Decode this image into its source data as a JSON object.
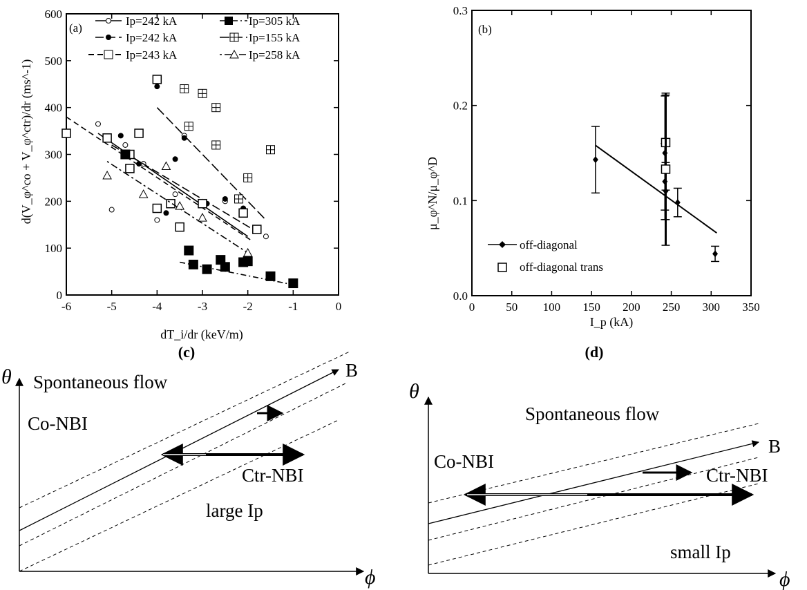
{
  "chart_data": [
    {
      "panel": "(a)",
      "type": "scatter",
      "xlabel": "dT_i/dr (keV/m)",
      "ylabel": "d(V_φ^co + V_φ^ctr)/dr (ms^-1)",
      "xlim": [
        -6,
        0
      ],
      "ylim": [
        0,
        600
      ],
      "xticks": [
        "-6",
        "-5",
        "-4",
        "-3",
        "-2",
        "-1",
        "0"
      ],
      "yticks": [
        "0",
        "100",
        "200",
        "300",
        "400",
        "500",
        "600"
      ],
      "legend_position": "top",
      "series": [
        {
          "name": "Ip=242 kA",
          "marker": "circle-open",
          "line": "solid",
          "points": [
            [
              -5.3,
              365
            ],
            [
              -5.0,
              182
            ],
            [
              -4.7,
              320
            ],
            [
              -4.3,
              280
            ],
            [
              -4.0,
              160
            ],
            [
              -3.6,
              215
            ],
            [
              -3.4,
              340
            ],
            [
              -2.5,
              200
            ],
            [
              -1.6,
              125
            ]
          ],
          "fit": [
            [
              -5.3,
              345
            ],
            [
              -2.0,
              125
            ]
          ]
        },
        {
          "name": "Ip=242 kA",
          "marker": "circle-filled",
          "line": "dash-long",
          "points": [
            [
              -4.8,
              340
            ],
            [
              -4.4,
              280
            ],
            [
              -4.0,
              445
            ],
            [
              -3.6,
              290
            ],
            [
              -3.4,
              335
            ],
            [
              -2.9,
              195
            ],
            [
              -2.5,
              205
            ],
            [
              -2.1,
              185
            ],
            [
              -3.8,
              175
            ]
          ],
          "fit": [
            [
              -5.0,
              320
            ],
            [
              -1.8,
              135
            ]
          ]
        },
        {
          "name": "Ip=243 kA",
          "marker": "square-open",
          "line": "dash",
          "points": [
            [
              -6.0,
              345
            ],
            [
              -5.1,
              335
            ],
            [
              -4.6,
              300
            ],
            [
              -4.6,
              270
            ],
            [
              -4.4,
              345
            ],
            [
              -4.0,
              185
            ],
            [
              -3.7,
              195
            ],
            [
              -3.5,
              145
            ],
            [
              -3.0,
              195
            ],
            [
              -4.0,
              460
            ],
            [
              -2.1,
              175
            ],
            [
              -1.8,
              140
            ]
          ],
          "fit": [
            [
              -6.0,
              380
            ],
            [
              -1.9,
              115
            ]
          ]
        },
        {
          "name": "Ip=305 kA",
          "marker": "square-filled",
          "line": "dash-dot",
          "points": [
            [
              -4.7,
              300
            ],
            [
              -3.3,
              95
            ],
            [
              -3.2,
              65
            ],
            [
              -2.9,
              55
            ],
            [
              -2.6,
              75
            ],
            [
              -2.5,
              60
            ],
            [
              -2.1,
              70
            ],
            [
              -2.0,
              72
            ],
            [
              -1.5,
              40
            ],
            [
              -1.0,
              25
            ]
          ],
          "fit": [
            [
              -3.5,
              70
            ],
            [
              -0.9,
              20
            ]
          ]
        },
        {
          "name": "Ip=155 kA",
          "marker": "square-cross",
          "line": "long-dash",
          "points": [
            [
              -3.4,
              440
            ],
            [
              -3.3,
              360
            ],
            [
              -3.0,
              430
            ],
            [
              -2.7,
              400
            ],
            [
              -2.7,
              320
            ],
            [
              -2.2,
              205
            ],
            [
              -2.0,
              250
            ],
            [
              -1.5,
              310
            ]
          ],
          "fit": [
            [
              -4.0,
              400
            ],
            [
              -1.6,
              160
            ]
          ]
        },
        {
          "name": "Ip=258 kA",
          "marker": "triangle",
          "line": "dot-dash",
          "points": [
            [
              -5.1,
              255
            ],
            [
              -4.3,
              215
            ],
            [
              -3.8,
              275
            ],
            [
              -3.5,
              190
            ],
            [
              -3.0,
              165
            ],
            [
              -2.0,
              90
            ]
          ],
          "fit": [
            [
              -5.1,
              285
            ],
            [
              -2.0,
              90
            ]
          ]
        }
      ]
    },
    {
      "panel": "(b)",
      "type": "scatter",
      "xlabel": "I_p (kA)",
      "ylabel": "μ_φ^N/μ_φ^D",
      "xlim": [
        0,
        350
      ],
      "ylim": [
        0.0,
        0.3
      ],
      "xticks": [
        "0",
        "50",
        "100",
        "150",
        "200",
        "250",
        "300",
        "350"
      ],
      "yticks": [
        "0.0",
        "0.1",
        "0.2",
        "0.3"
      ],
      "legend_position": "lower-left",
      "series": [
        {
          "name": "off-diagonal",
          "marker": "diamond-filled",
          "points": [
            {
              "x": 155,
              "y": 0.143,
              "err": 0.035
            },
            {
              "x": 242,
              "y": 0.15,
              "err": 0.06
            },
            {
              "x": 242,
              "y": 0.12,
              "err": 0.04
            },
            {
              "x": 243,
              "y": 0.11,
              "err": 0.03
            },
            {
              "x": 258,
              "y": 0.098,
              "err": 0.015
            },
            {
              "x": 305,
              "y": 0.044,
              "err": 0.008
            }
          ],
          "fit": [
            [
              155,
              0.158
            ],
            [
              307,
              0.066
            ]
          ]
        },
        {
          "name": "off-diagonal trans",
          "marker": "square-open",
          "points": [
            {
              "x": 243,
              "y": 0.161,
              "err": 0.05
            },
            {
              "x": 243,
              "y": 0.133,
              "err": 0.08
            }
          ]
        }
      ]
    }
  ],
  "diagrams": {
    "c": {
      "label": "(c)",
      "theta": "θ",
      "phi": "ϕ",
      "b": "B",
      "spontaneous": "Spontaneous flow",
      "co": "Co-NBI",
      "ctr": "Ctr-NBI",
      "ip": "large Ip"
    },
    "d": {
      "label": "(d)",
      "theta": "θ",
      "phi": "ϕ",
      "b": "B",
      "spontaneous": "Spontaneous flow",
      "co": "Co-NBI",
      "ctr": "Ctr-NBI",
      "ip": "small Ip"
    }
  }
}
